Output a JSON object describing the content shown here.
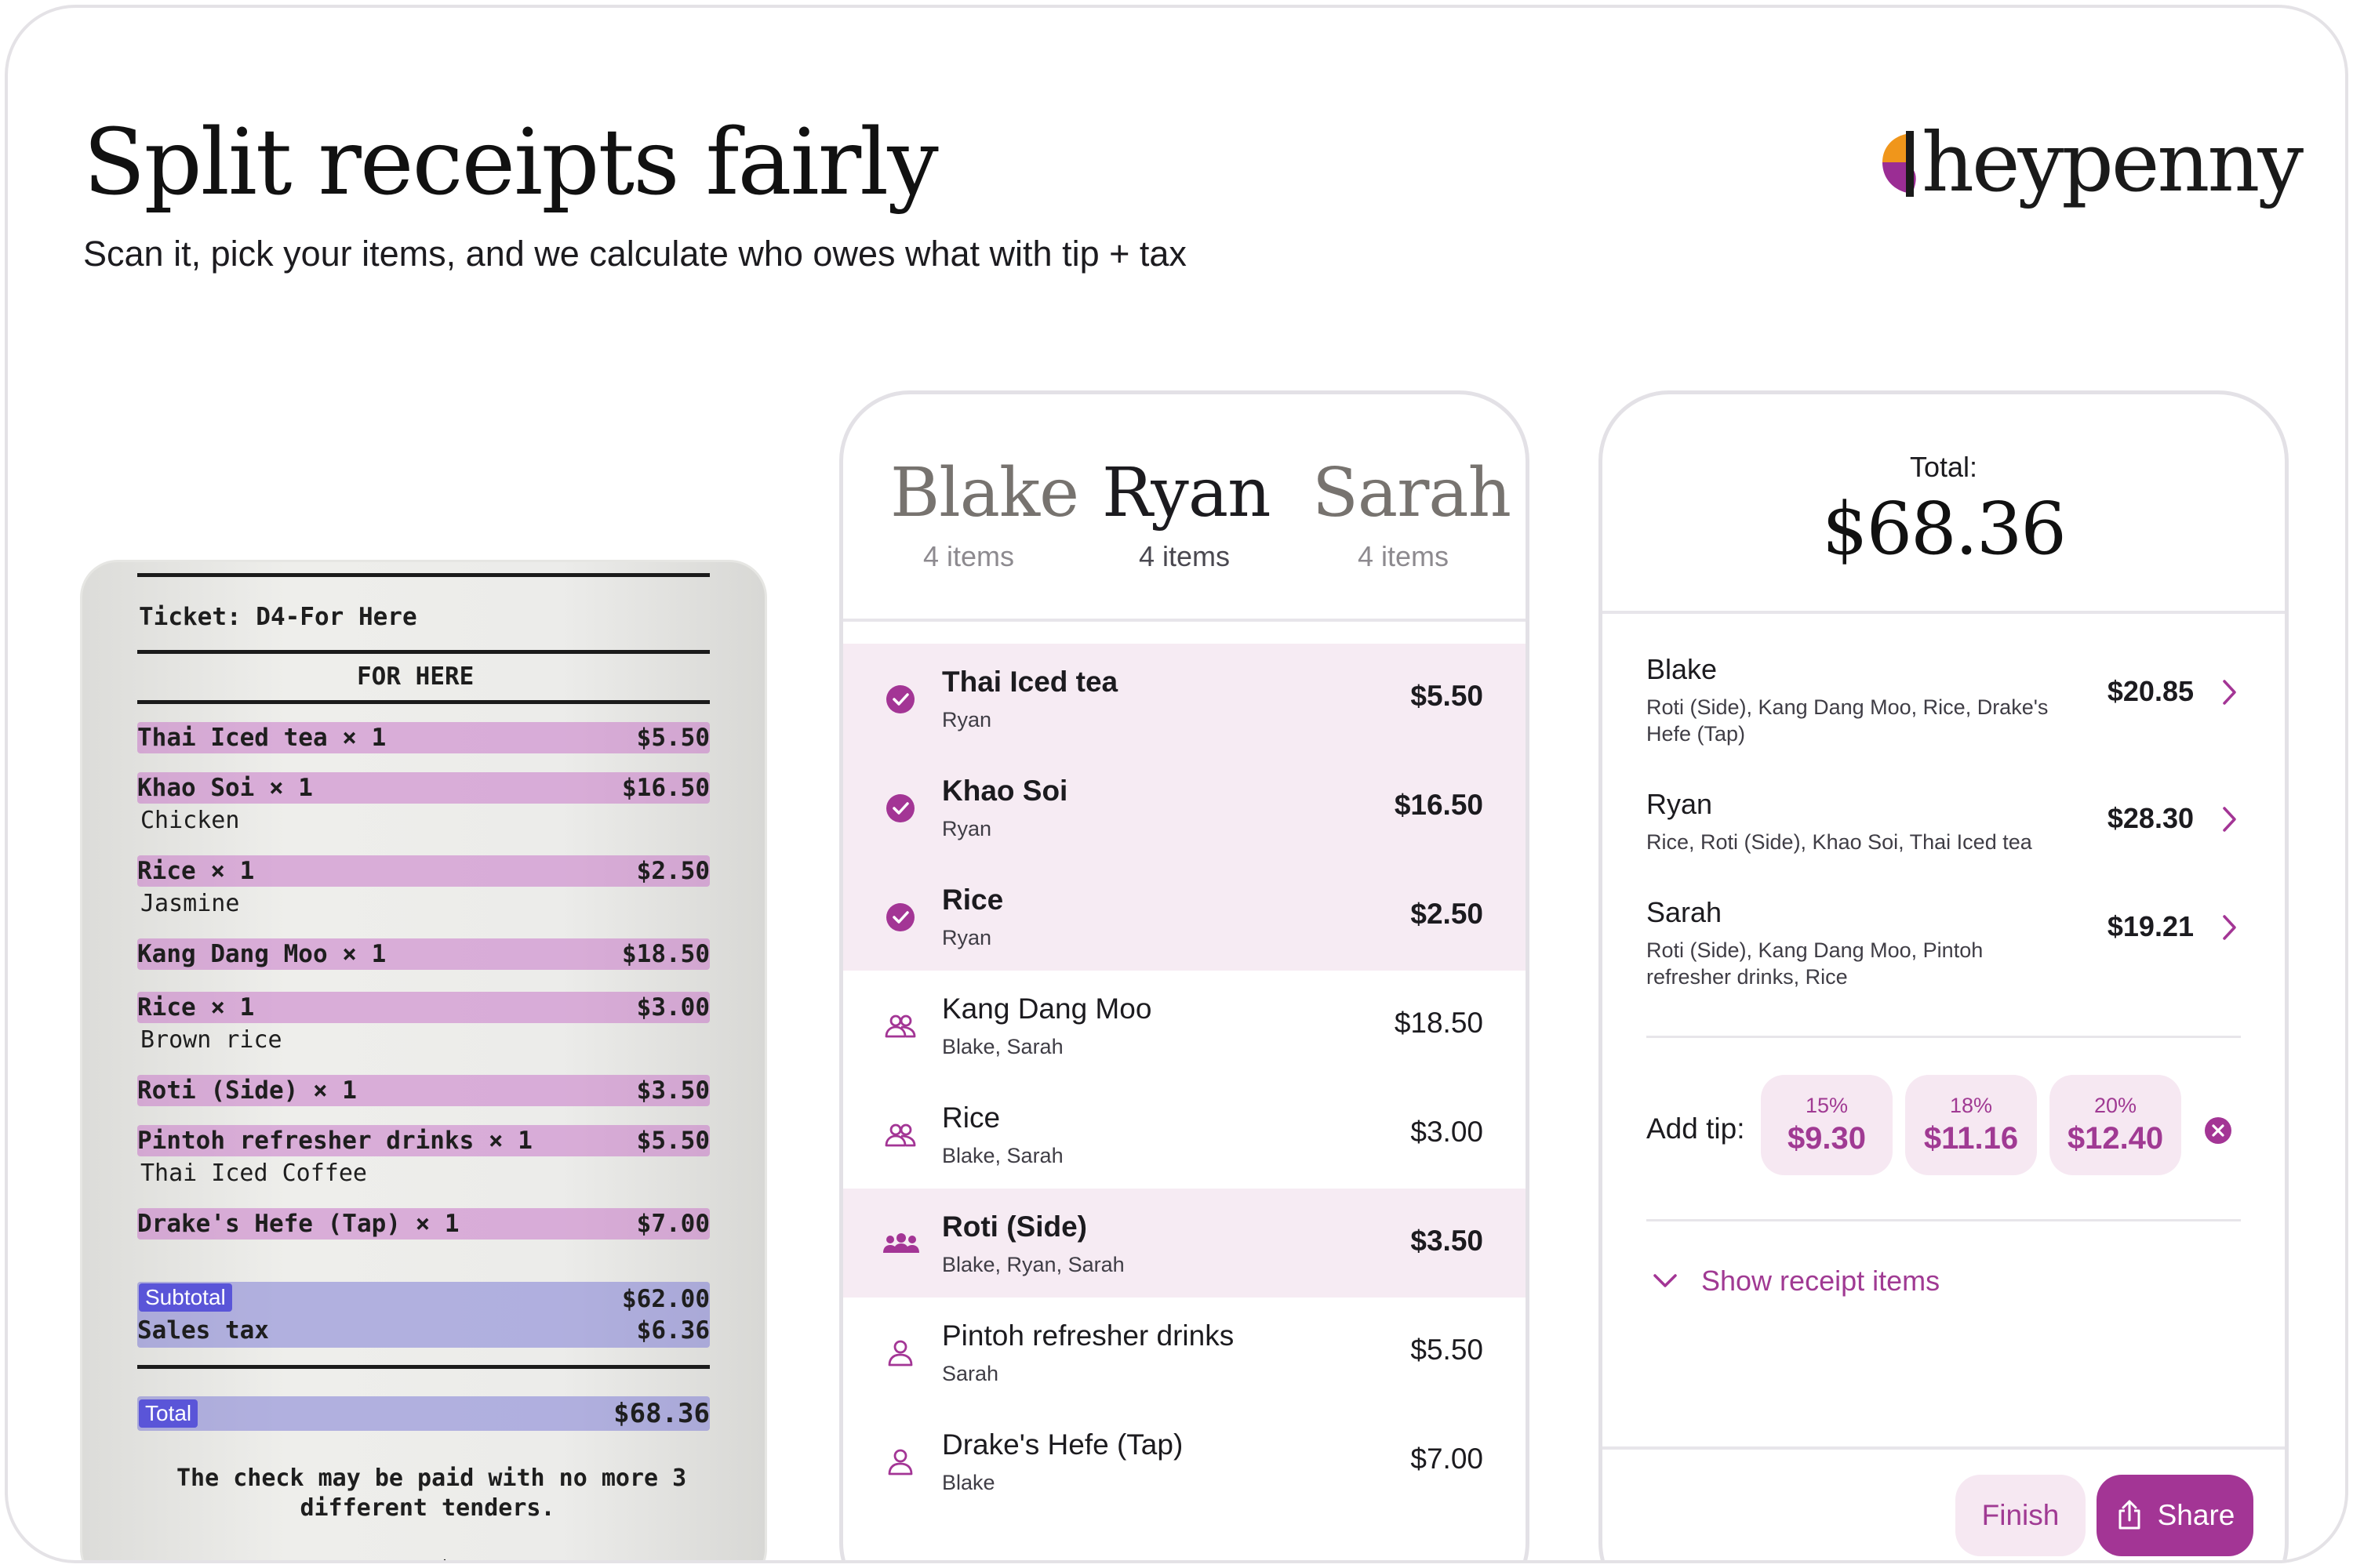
{
  "header": {
    "title": "Split receipts fairly",
    "subtitle": "Scan it, pick your items, and we calculate who owes what with tip + tax",
    "brand": "heypenny"
  },
  "colors": {
    "accent": "#a33595",
    "accent_soft": "#f6e8f2",
    "selected_row": "#f6ebf3",
    "logo_orange": "#f0961b",
    "logo_purple": "#9b2d94"
  },
  "receipt": {
    "ticket": "Ticket: D4-For Here",
    "for_here": "FOR HERE",
    "lines": [
      {
        "name": "Thai Iced tea × 1",
        "price": "$5.50",
        "note": ""
      },
      {
        "name": "Khao Soi × 1",
        "price": "$16.50",
        "note": "Chicken"
      },
      {
        "name": "Rice × 1",
        "price": "$2.50",
        "note": "Jasmine"
      },
      {
        "name": "Kang Dang Moo × 1",
        "price": "$18.50",
        "note": ""
      },
      {
        "name": "Rice × 1",
        "price": "$3.00",
        "note": "Brown rice"
      },
      {
        "name": "Roti (Side) × 1",
        "price": "$3.50",
        "note": ""
      },
      {
        "name": "Pintoh refresher drinks × 1",
        "price": "$5.50",
        "note": "Thai Iced Coffee"
      },
      {
        "name": "Drake's Hefe (Tap) × 1",
        "price": "$7.00",
        "note": ""
      }
    ],
    "subtotal_tag": "Subtotal",
    "subtotal_value": "$62.00",
    "sales_tax_label": "Sales tax",
    "sales_tax_value": "$6.36",
    "total_tag": "Total",
    "total_value": "$68.36",
    "footer": "The check may be paid with no more 3\ndifferent tenders.",
    "footer_cut": "ขอบคุณค่ะ"
  },
  "assign": {
    "people": [
      {
        "name": "Blake",
        "items": "4 items",
        "active": false
      },
      {
        "name": "Ryan",
        "items": "4 items",
        "active": true
      },
      {
        "name": "Sarah",
        "items": "4 items",
        "active": false
      }
    ],
    "items": [
      {
        "name": "Thai Iced tea",
        "who": "Ryan",
        "price": "$5.50",
        "icon": "check-circle-icon",
        "selected": true
      },
      {
        "name": "Khao Soi",
        "who": "Ryan",
        "price": "$16.50",
        "icon": "check-circle-icon",
        "selected": true
      },
      {
        "name": "Rice",
        "who": "Ryan",
        "price": "$2.50",
        "icon": "check-circle-icon",
        "selected": true
      },
      {
        "name": "Kang Dang Moo",
        "who": "Blake, Sarah",
        "price": "$18.50",
        "icon": "two-people-icon",
        "selected": false
      },
      {
        "name": "Rice",
        "who": "Blake, Sarah",
        "price": "$3.00",
        "icon": "two-people-icon",
        "selected": false
      },
      {
        "name": "Roti (Side)",
        "who": "Blake, Ryan, Sarah",
        "price": "$3.50",
        "icon": "group-icon",
        "selected": true
      },
      {
        "name": "Pintoh refresher drinks",
        "who": "Sarah",
        "price": "$5.50",
        "icon": "person-icon",
        "selected": false
      },
      {
        "name": "Drake's Hefe (Tap)",
        "who": "Blake",
        "price": "$7.00",
        "icon": "person-icon",
        "selected": false
      }
    ]
  },
  "summary": {
    "total_label": "Total:",
    "total_value": "$68.36",
    "owes": [
      {
        "name": "Blake",
        "items": "Roti (Side), Kang Dang Moo, Rice, Drake's Hefe (Tap)",
        "amount": "$20.85"
      },
      {
        "name": "Ryan",
        "items": "Rice, Roti (Side), Khao Soi, Thai Iced tea",
        "amount": "$28.30"
      },
      {
        "name": "Sarah",
        "items": "Roti (Side), Kang Dang Moo, Pintoh refresher drinks, Rice",
        "amount": "$19.21"
      }
    ],
    "tip_label": "Add tip:",
    "tips": [
      {
        "percent": "15%",
        "value": "$9.30"
      },
      {
        "percent": "18%",
        "value": "$11.16"
      },
      {
        "percent": "20%",
        "value": "$12.40"
      }
    ],
    "show_items": "Show receipt items",
    "finish": "Finish",
    "share": "Share"
  }
}
